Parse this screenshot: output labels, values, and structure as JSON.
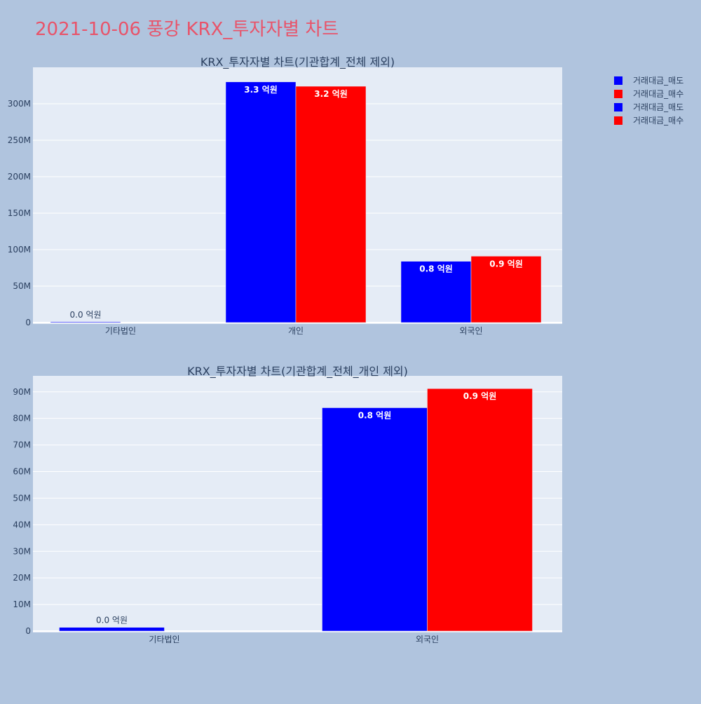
{
  "page_title": "2021-10-06 풍강 KRX_투자자별 차트",
  "legend": [
    {
      "label": "거래대금_매도",
      "color": "#0000ff"
    },
    {
      "label": "거래대금_매수",
      "color": "#ff0000"
    },
    {
      "label": "거래대금_매도",
      "color": "#0000ff"
    },
    {
      "label": "거래대금_매수",
      "color": "#ff0000"
    }
  ],
  "colors": {
    "background": "#b0c4de",
    "plot_bg": "#e5ecf6",
    "sell": "#0000ff",
    "buy": "#ff0000",
    "title": "#e8546a"
  },
  "chart_data": [
    {
      "type": "bar",
      "title": "KRX_투자자별 차트(기관합계_전체 제외)",
      "categories": [
        "기타법인",
        "개인",
        "외국인"
      ],
      "ylim": [
        0,
        350000000
      ],
      "ticks": [
        0,
        50000000,
        100000000,
        150000000,
        200000000,
        250000000,
        300000000
      ],
      "tick_labels": [
        "0",
        "50M",
        "100M",
        "150M",
        "200M",
        "250M",
        "300M"
      ],
      "series": [
        {
          "name": "거래대금_매도",
          "color": "#0000ff",
          "values": [
            1000000,
            330000000,
            84000000
          ],
          "labels": [
            "0.0 억원",
            "3.3 억원",
            "0.8 억원"
          ]
        },
        {
          "name": "거래대금_매수",
          "color": "#ff0000",
          "values": [
            0,
            324000000,
            91000000
          ],
          "labels": [
            "",
            "3.2 억원",
            "0.9 억원"
          ]
        }
      ],
      "grid": true
    },
    {
      "type": "bar",
      "title": "KRX_투자자별 차트(기관합계_전체_개인 제외)",
      "categories": [
        "기타법인",
        "외국인"
      ],
      "ylim": [
        0,
        96000000
      ],
      "ticks": [
        0,
        10000000,
        20000000,
        30000000,
        40000000,
        50000000,
        60000000,
        70000000,
        80000000,
        90000000
      ],
      "tick_labels": [
        "0",
        "10M",
        "20M",
        "30M",
        "40M",
        "50M",
        "60M",
        "70M",
        "80M",
        "90M"
      ],
      "series": [
        {
          "name": "거래대금_매도",
          "color": "#0000ff",
          "values": [
            1400000,
            84000000
          ],
          "labels": [
            "0.0 억원",
            "0.8 억원"
          ]
        },
        {
          "name": "거래대금_매수",
          "color": "#ff0000",
          "values": [
            0,
            91200000
          ],
          "labels": [
            "",
            "0.9 억원"
          ]
        }
      ],
      "grid": true
    }
  ]
}
